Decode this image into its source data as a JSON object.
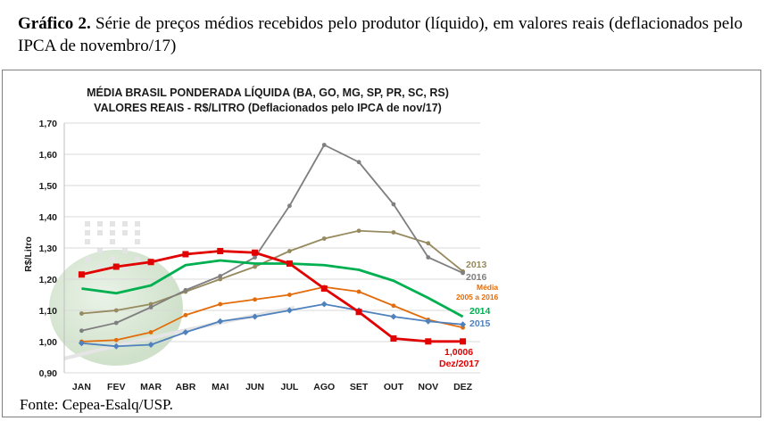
{
  "caption": {
    "label": "Gráfico 2.",
    "text": "Série de preços médios recebidos pelo produtor (líquido), em valores reais (deflacionados pelo IPCA de novembro/17)"
  },
  "source": "Fonte: Cepea-Esalq/USP.",
  "chart_data": {
    "type": "line",
    "title": "MÉDIA BRASIL PONDERADA LÍQUIDA (BA, GO, MG, SP, PR, SC, RS)",
    "subtitle": "VALORES REAIS - R$/LITRO (Deflacionados pelo IPCA de nov/17)",
    "ylabel": "R$/Litro",
    "xlabel": "",
    "ylim": [
      0.9,
      1.7
    ],
    "yticks": [
      "0,90",
      "1,00",
      "1,10",
      "1,20",
      "1,30",
      "1,40",
      "1,50",
      "1,60",
      "1,70"
    ],
    "grid": true,
    "categories": [
      "JAN",
      "FEV",
      "MAR",
      "ABR",
      "MAI",
      "JUN",
      "JUL",
      "AGO",
      "SET",
      "OUT",
      "NOV",
      "DEZ"
    ],
    "series": [
      {
        "name": "2013",
        "color": "#968a5e",
        "marker": "circle",
        "values": [
          1.09,
          1.1,
          1.12,
          1.16,
          1.2,
          1.24,
          1.29,
          1.33,
          1.355,
          1.35,
          1.315,
          1.225
        ]
      },
      {
        "name": "2016",
        "color": "#7f7f7f",
        "marker": "circle",
        "values": [
          1.035,
          1.06,
          1.11,
          1.165,
          1.21,
          1.27,
          1.435,
          1.63,
          1.575,
          1.44,
          1.27,
          1.22
        ]
      },
      {
        "name": "Média 2005 a 2016",
        "color": "#e36c0a",
        "marker": "circle",
        "values": [
          1.0,
          1.005,
          1.03,
          1.085,
          1.12,
          1.135,
          1.15,
          1.175,
          1.16,
          1.115,
          1.07,
          1.045
        ]
      },
      {
        "name": "2014",
        "color": "#00b050",
        "marker": "none",
        "values": [
          1.17,
          1.155,
          1.18,
          1.245,
          1.26,
          1.25,
          1.25,
          1.245,
          1.23,
          1.195,
          1.14,
          1.08
        ]
      },
      {
        "name": "2015",
        "color": "#4f81bd",
        "marker": "diamond",
        "values": [
          0.995,
          0.985,
          0.99,
          1.03,
          1.065,
          1.08,
          1.1,
          1.12,
          1.1,
          1.08,
          1.065,
          1.055
        ]
      },
      {
        "name": "2017",
        "color": "#e00000",
        "marker": "square",
        "values": [
          1.215,
          1.24,
          1.255,
          1.28,
          1.29,
          1.285,
          1.25,
          1.17,
          1.095,
          1.01,
          1.0006,
          1.0006
        ]
      }
    ],
    "labels": {
      "s2013": "2013",
      "s2016": "2016",
      "media_line1": "Média",
      "media_line2": "2005 a 2016",
      "s2014": "2014",
      "s2015": "2015",
      "last_value": "1,0006",
      "last_date": "Dez/2017"
    }
  }
}
